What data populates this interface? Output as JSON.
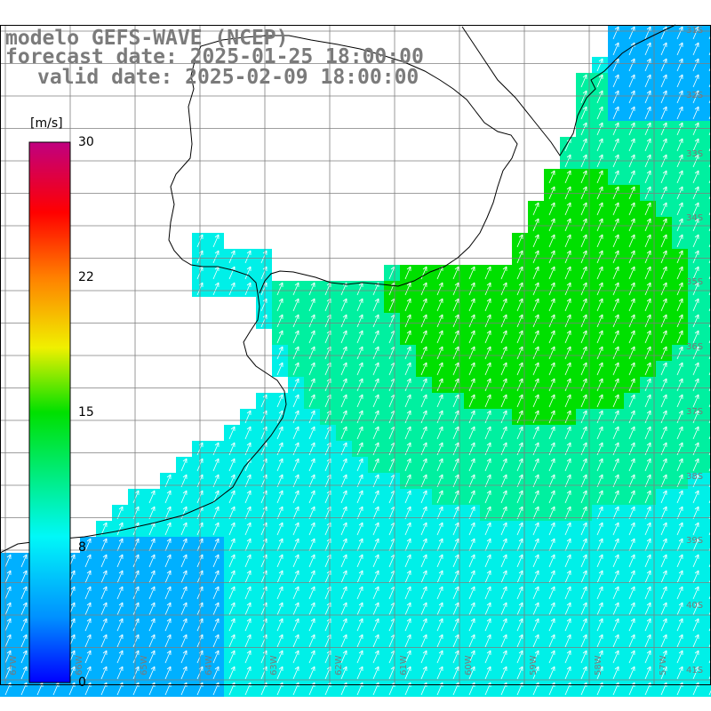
{
  "title": {
    "line1": "modelo GEFS-WAVE (NCEP)",
    "line2": "forecast date: 2025-01-25 18:00:00",
    "line3": "valid date: 2025-02-09 18:00:00"
  },
  "colorbar": {
    "unit": "[m/s]",
    "ticks": [
      "30",
      "22",
      "15",
      "8",
      "0"
    ],
    "range": [
      0,
      30
    ],
    "colors": [
      "#0000ff",
      "#00a0ff",
      "#00f0f0",
      "#00e000",
      "#c0f000",
      "#ffff00",
      "#ff8000",
      "#ff0000",
      "#ff0060",
      "#c00080"
    ]
  },
  "grid": {
    "longitude_labels": [
      "67W",
      "66W",
      "65W",
      "64W",
      "63W",
      "62W",
      "61W",
      "60W",
      "59W",
      "58W",
      "57W"
    ],
    "latitude_labels": [
      "31S",
      "32S",
      "33S",
      "34S",
      "35S",
      "36S",
      "37S",
      "38S",
      "39S",
      "40S",
      "41S"
    ]
  },
  "colors": {
    "ocean_wind_low": "#00b0ff",
    "ocean_wind_mid": "#00f0e8",
    "ocean_wind_high": "#00e000",
    "land": "#ffffff",
    "coastline": "#000000",
    "gridlines": "#7f7f7f",
    "wind_arrows": "#ffffff"
  }
}
